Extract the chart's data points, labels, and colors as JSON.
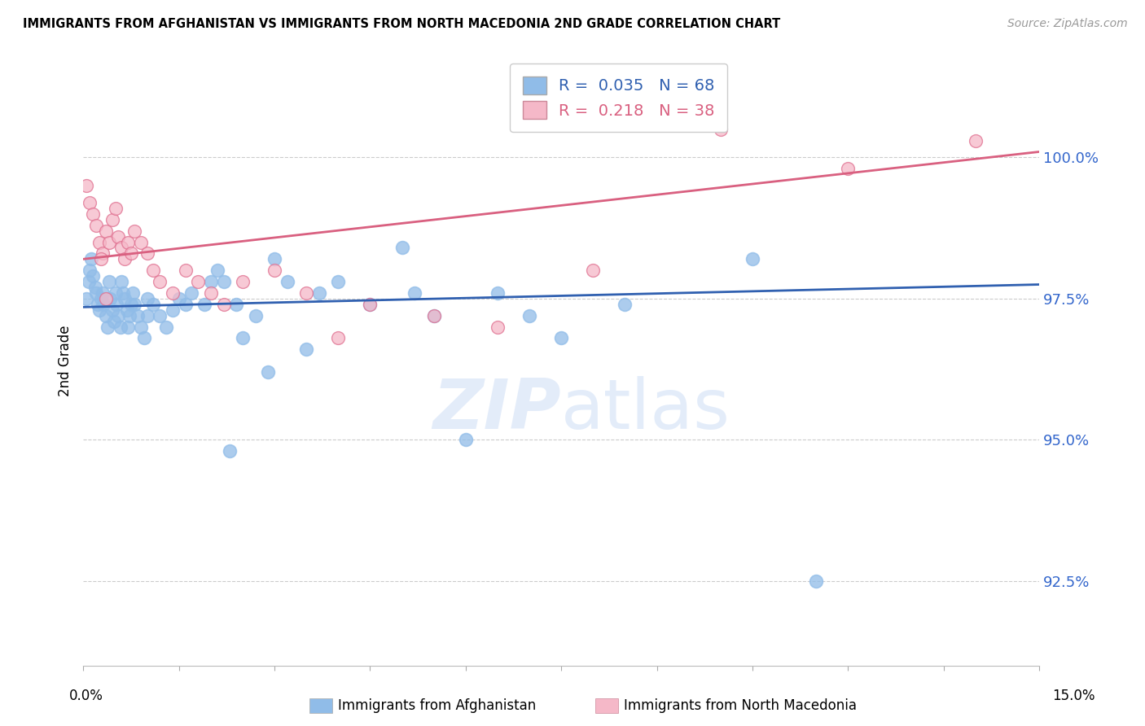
{
  "title": "IMMIGRANTS FROM AFGHANISTAN VS IMMIGRANTS FROM NORTH MACEDONIA 2ND GRADE CORRELATION CHART",
  "source": "Source: ZipAtlas.com",
  "ylabel": "2nd Grade",
  "y_ticks": [
    92.5,
    95.0,
    97.5,
    100.0
  ],
  "y_tick_labels": [
    "92.5%",
    "95.0%",
    "97.5%",
    "100.0%"
  ],
  "x_min": 0.0,
  "x_max": 15.0,
  "y_min": 91.0,
  "y_max": 101.8,
  "blue_color": "#90bce8",
  "blue_edge_color": "#90bce8",
  "blue_line_color": "#3060b0",
  "pink_color": "#f5b8c8",
  "pink_edge_color": "#e07090",
  "pink_line_color": "#d96080",
  "tick_label_color": "#3366cc",
  "watermark_color": "#c8daf5",
  "blue_R": 0.035,
  "blue_N": 68,
  "pink_R": 0.218,
  "pink_N": 38,
  "blue_line_y0": 97.35,
  "blue_line_y1": 97.75,
  "pink_line_y0": 98.2,
  "pink_line_y1": 100.1,
  "afghanistan_x": [
    0.05,
    0.08,
    0.1,
    0.12,
    0.15,
    0.18,
    0.2,
    0.22,
    0.25,
    0.28,
    0.3,
    0.32,
    0.35,
    0.38,
    0.4,
    0.42,
    0.45,
    0.48,
    0.5,
    0.52,
    0.55,
    0.58,
    0.6,
    0.62,
    0.65,
    0.68,
    0.7,
    0.72,
    0.75,
    0.78,
    0.8,
    0.85,
    0.9,
    0.95,
    1.0,
    1.0,
    1.1,
    1.2,
    1.3,
    1.4,
    1.5,
    1.7,
    1.9,
    2.0,
    2.1,
    2.2,
    2.4,
    2.5,
    2.7,
    3.0,
    3.2,
    3.5,
    3.7,
    4.0,
    4.5,
    5.0,
    5.2,
    5.5,
    6.0,
    6.5,
    7.0,
    7.5,
    8.5,
    10.5,
    11.5,
    2.3,
    1.6,
    2.9
  ],
  "afghanistan_y": [
    97.5,
    97.8,
    98.0,
    98.2,
    97.9,
    97.7,
    97.6,
    97.4,
    97.3,
    97.5,
    97.6,
    97.4,
    97.2,
    97.0,
    97.8,
    97.5,
    97.3,
    97.1,
    97.6,
    97.4,
    97.2,
    97.0,
    97.8,
    97.6,
    97.5,
    97.3,
    97.0,
    97.2,
    97.4,
    97.6,
    97.4,
    97.2,
    97.0,
    96.8,
    97.2,
    97.5,
    97.4,
    97.2,
    97.0,
    97.3,
    97.5,
    97.6,
    97.4,
    97.8,
    98.0,
    97.8,
    97.4,
    96.8,
    97.2,
    98.2,
    97.8,
    96.6,
    97.6,
    97.8,
    97.4,
    98.4,
    97.6,
    97.2,
    95.0,
    97.6,
    97.2,
    96.8,
    97.4,
    98.2,
    92.5,
    94.8,
    97.4,
    96.2
  ],
  "macedonia_x": [
    0.05,
    0.1,
    0.15,
    0.2,
    0.25,
    0.3,
    0.35,
    0.4,
    0.45,
    0.5,
    0.55,
    0.6,
    0.65,
    0.7,
    0.75,
    0.8,
    0.9,
    1.0,
    1.1,
    1.2,
    1.4,
    1.6,
    1.8,
    2.0,
    2.2,
    2.5,
    3.0,
    3.5,
    4.0,
    4.5,
    5.5,
    6.5,
    8.0,
    10.0,
    12.0,
    14.0,
    0.28,
    0.35
  ],
  "macedonia_y": [
    99.5,
    99.2,
    99.0,
    98.8,
    98.5,
    98.3,
    98.7,
    98.5,
    98.9,
    99.1,
    98.6,
    98.4,
    98.2,
    98.5,
    98.3,
    98.7,
    98.5,
    98.3,
    98.0,
    97.8,
    97.6,
    98.0,
    97.8,
    97.6,
    97.4,
    97.8,
    98.0,
    97.6,
    96.8,
    97.4,
    97.2,
    97.0,
    98.0,
    100.5,
    99.8,
    100.3,
    98.2,
    97.5
  ]
}
